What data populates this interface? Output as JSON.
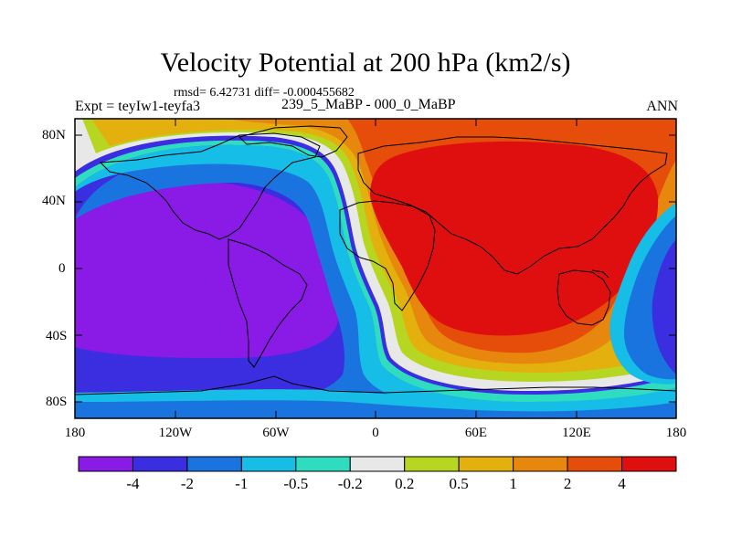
{
  "title": "Velocity Potential at 200 hPa (km2/s)",
  "stats": "rmsd= 6.42731 diff= -0.000455682",
  "left_label": "Expt = teyIw1-teyfa3",
  "center_label": "239_5_MaBP - 000_0_MaBP",
  "right_label": "ANN",
  "lat_ticks": [
    "80N",
    "40N",
    "0",
    "40S",
    "80S"
  ],
  "lon_ticks": [
    "180",
    "120W",
    "60W",
    "0",
    "60E",
    "120E",
    "180"
  ],
  "colorbar": {
    "colors": [
      "#8a1ae6",
      "#3a2ee0",
      "#1a74e0",
      "#16bde6",
      "#30dcc0",
      "#e8e8e8",
      "#b6d622",
      "#e3b00e",
      "#e7870e",
      "#e64d0a",
      "#e00f0f"
    ],
    "labels": [
      "-4",
      "-2",
      "-1",
      "-0.5",
      "-0.2",
      "0.2",
      "0.5",
      "1",
      "2",
      "4"
    ]
  }
}
